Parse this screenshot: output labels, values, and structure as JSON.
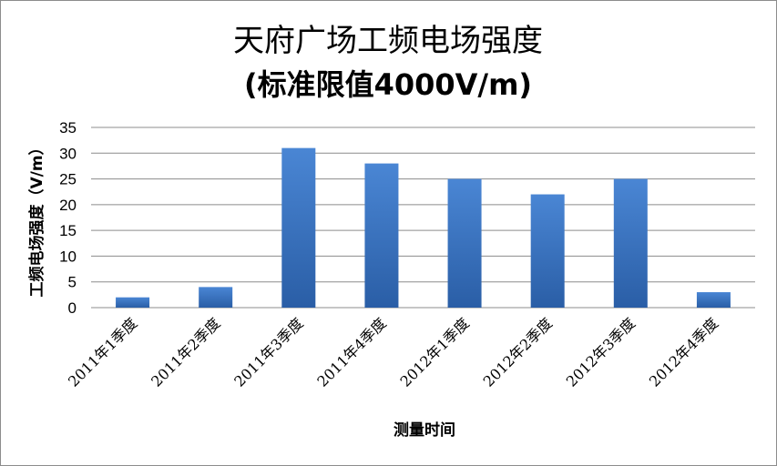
{
  "chart_data": {
    "type": "bar",
    "title": "天府广场工频电场强度",
    "subtitle": "(标准限值4000V/m)",
    "xlabel": "测量时间",
    "ylabel": "工频电场强度（V/m）",
    "categories": [
      "2011年1季度",
      "2011年2季度",
      "2011年3季度",
      "2011年4季度",
      "2012年1季度",
      "2012年2季度",
      "2012年3季度",
      "2012年4季度"
    ],
    "values": [
      2,
      4,
      31,
      28,
      25,
      22,
      25,
      3
    ],
    "ylim": [
      0,
      35
    ],
    "yticks": [
      "0",
      "5",
      "10",
      "15",
      "20",
      "25",
      "30",
      "35"
    ],
    "grid": true,
    "legend": "none",
    "colors": {
      "bar_top": "#4a86d4",
      "bar_bottom": "#2a5ea6",
      "grid": "#8c8c8c"
    }
  }
}
